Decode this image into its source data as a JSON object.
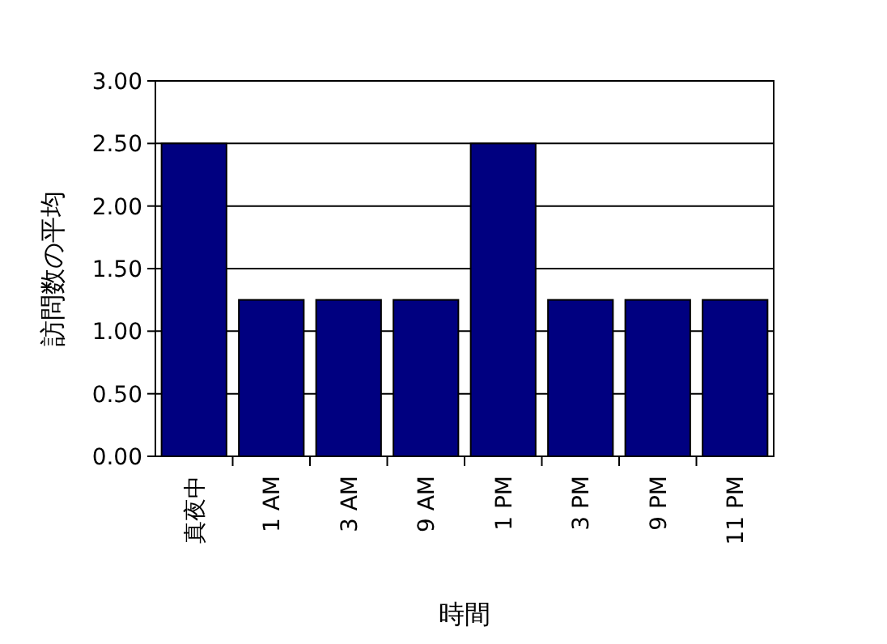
{
  "chart_data": {
    "type": "bar",
    "xlabel": "時間",
    "ylabel": "訪問数の平均",
    "categories": [
      "真夜中",
      "1 AM",
      "3 AM",
      "9 AM",
      "1 PM",
      "3 PM",
      "9 PM",
      "11 PM"
    ],
    "values": [
      2.5,
      1.25,
      1.25,
      1.25,
      2.5,
      1.25,
      1.25,
      1.25
    ],
    "color": "#000080",
    "ylim": [
      0,
      3
    ],
    "yticks": [
      {
        "value": 0,
        "label": "0.00"
      },
      {
        "value": 0.5,
        "label": "0.50"
      },
      {
        "value": 1,
        "label": "1.00"
      },
      {
        "value": 1.5,
        "label": "1.50"
      },
      {
        "value": 2,
        "label": "2.00"
      },
      {
        "value": 2.5,
        "label": "2.50"
      },
      {
        "value": 3,
        "label": "3.00"
      }
    ],
    "grid": "y"
  }
}
